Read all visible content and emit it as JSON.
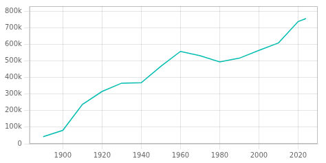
{
  "chart_data": {
    "type": "line",
    "x": [
      1890,
      1900,
      1910,
      1920,
      1930,
      1940,
      1950,
      1960,
      1970,
      1980,
      1990,
      2000,
      2010,
      2020,
      2024
    ],
    "values": [
      42837,
      80671,
      237194,
      315312,
      365583,
      368302,
      467591,
      557087,
      530831,
      493846,
      516259,
      563374,
      608660,
      737255,
      755078
    ],
    "color": "#00bdb0",
    "xlim": [
      1883,
      2030
    ],
    "ylim": [
      0,
      830000
    ],
    "xticks": [
      1900,
      1920,
      1940,
      1960,
      1980,
      2000,
      2020
    ],
    "yticks": [
      0,
      {
        "value": 100000,
        "label": "100k"
      },
      {
        "value": 200000,
        "label": "200k"
      },
      {
        "value": 300000,
        "label": "300k"
      },
      {
        "value": 400000,
        "label": "400k"
      },
      {
        "value": 500000,
        "label": "500k"
      },
      {
        "value": 600000,
        "label": "600k"
      },
      {
        "value": 700000,
        "label": "700k"
      },
      {
        "value": 800000,
        "label": "800k"
      }
    ],
    "grid": true
  }
}
